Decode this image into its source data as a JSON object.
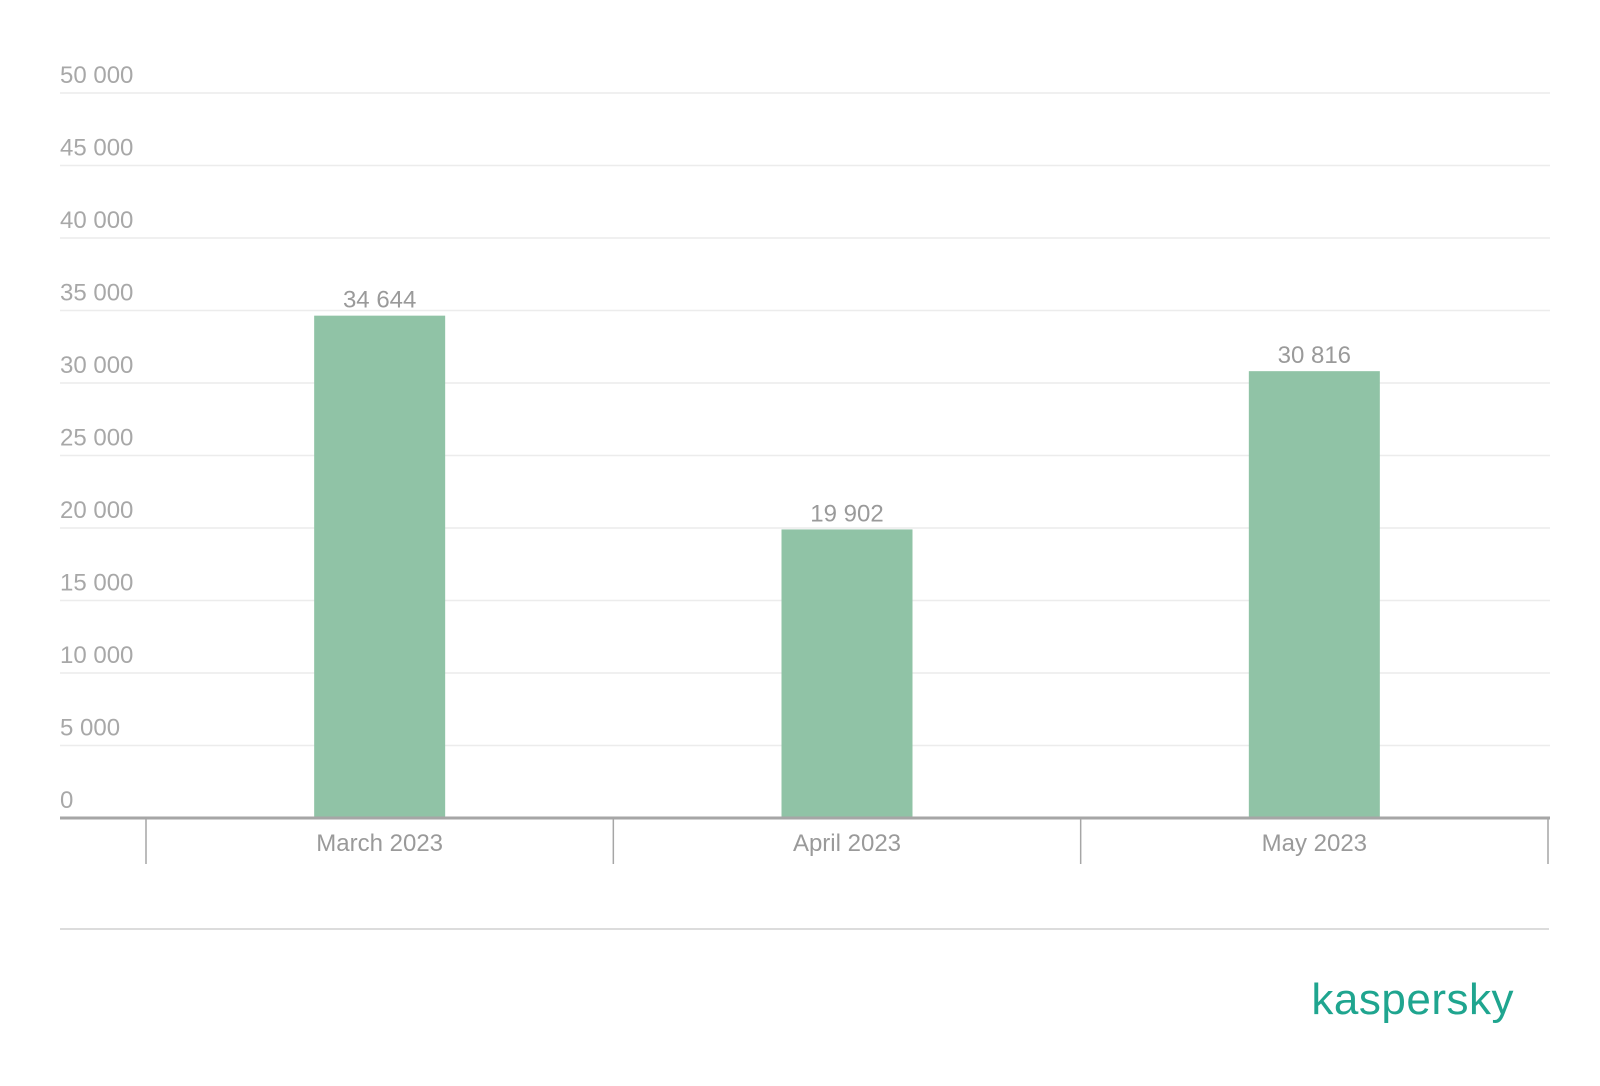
{
  "chart_data": {
    "type": "bar",
    "categories": [
      "March 2023",
      "April 2023",
      "May 2023"
    ],
    "values": [
      34644,
      19902,
      30816
    ],
    "data_labels": [
      "34 644",
      "19 902",
      "30 816"
    ],
    "y_ticks": [
      0,
      5000,
      10000,
      15000,
      20000,
      25000,
      30000,
      35000,
      40000,
      45000,
      50000
    ],
    "y_tick_labels": [
      "0",
      "5 000",
      "10 000",
      "15 000",
      "20 000",
      "25 000",
      "30 000",
      "35 000",
      "40 000",
      "45 000",
      "50 000"
    ],
    "ylim": [
      0,
      50000
    ],
    "title": "",
    "xlabel": "",
    "ylabel": "",
    "grid": true,
    "legend": "none",
    "colors": {
      "bar": "#90c3a6",
      "grid": "#ececec",
      "axis": "#a6a6a6",
      "label_text": "#a8a8a8"
    }
  },
  "brand": {
    "logo_text": "kaspersky",
    "color": "#1fa58f"
  }
}
